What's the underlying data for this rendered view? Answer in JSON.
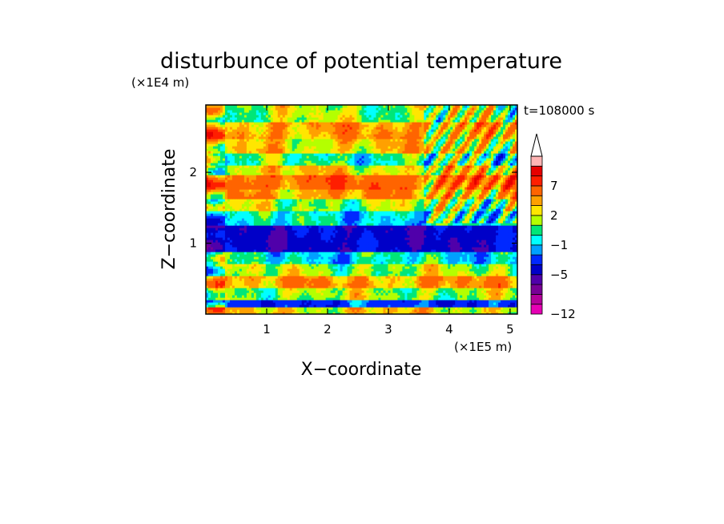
{
  "chart_data": {
    "type": "heatmap",
    "title": "disturbunce of potential temperature",
    "annotation": "t=108000 s",
    "xlabel": "X−coordinate",
    "ylabel": "Z−coordinate",
    "x_scale_label": "(×1E5 m)",
    "y_scale_label": "(×1E4 m)",
    "xlim": [
      0,
      5.12
    ],
    "ylim": [
      0,
      2.95
    ],
    "x_ticks": [
      1,
      2,
      3,
      4,
      5
    ],
    "x_tick_labels": [
      "1",
      "2",
      "3",
      "4",
      "5"
    ],
    "y_ticks": [
      1,
      2
    ],
    "y_tick_labels": [
      "1",
      "2"
    ],
    "colorbar": {
      "levels": [
        -12,
        -11,
        -9,
        -7,
        -5,
        -3,
        -2,
        -1,
        0,
        1,
        2,
        3,
        5,
        7,
        9,
        11
      ],
      "tick_labels": [
        {
          "value": 7,
          "label": "7"
        },
        {
          "value": 2,
          "label": "2"
        },
        {
          "value": -1,
          "label": "−1"
        },
        {
          "value": -5,
          "label": "−5"
        },
        {
          "value": -12,
          "label": "−12"
        }
      ],
      "colors": [
        "#e600b4",
        "#b4009b",
        "#780096",
        "#5000aa",
        "#0000c8",
        "#0028ff",
        "#00a0ff",
        "#00ffff",
        "#00e678",
        "#b4ff00",
        "#ffe600",
        "#ffa000",
        "#ff6400",
        "#ff1e00",
        "#e60000",
        "#ffb4b4",
        "#ffffff"
      ],
      "extend_top": true
    },
    "bands": [
      {
        "z": [
          0.0,
          0.1
        ],
        "value": 1.5
      },
      {
        "z": [
          0.1,
          0.22
        ],
        "value": -4.0
      },
      {
        "z": [
          0.22,
          0.38
        ],
        "value": 0.4
      },
      {
        "z": [
          0.38,
          0.55
        ],
        "value": 2.6
      },
      {
        "z": [
          0.55,
          0.72
        ],
        "value": 0.4
      },
      {
        "z": [
          0.72,
          0.88
        ],
        "value": -1.5
      },
      {
        "z": [
          0.88,
          1.25
        ],
        "value": -6.0
      },
      {
        "z": [
          1.25,
          1.45
        ],
        "value": -1.5
      },
      {
        "z": [
          1.45,
          1.62
        ],
        "value": 0.4
      },
      {
        "z": [
          1.62,
          1.78
        ],
        "value": 2.6
      },
      {
        "z": [
          1.78,
          1.95
        ],
        "value": 4.0
      },
      {
        "z": [
          1.95,
          2.1
        ],
        "value": 1.6
      },
      {
        "z": [
          2.1,
          2.28
        ],
        "value": -0.7
      },
      {
        "z": [
          2.28,
          2.48
        ],
        "value": 1.6
      },
      {
        "z": [
          2.48,
          2.7
        ],
        "value": 2.6
      },
      {
        "z": [
          2.7,
          2.95
        ],
        "value": 0.4
      }
    ]
  }
}
